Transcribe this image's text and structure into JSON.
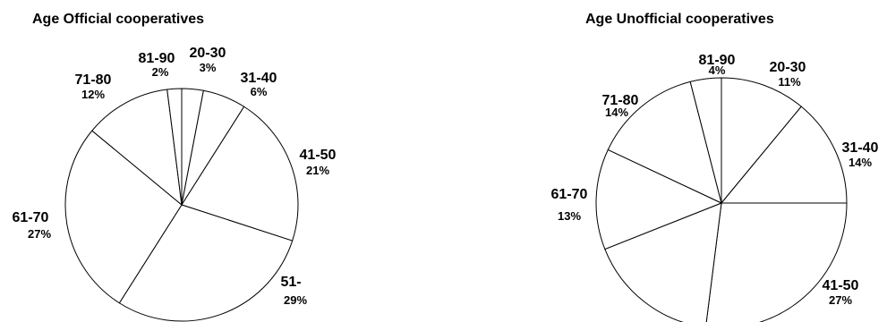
{
  "chart_data": [
    {
      "type": "pie",
      "title": "Age Official cooperatives",
      "slices": [
        {
          "category": "20-30",
          "value": 3,
          "value_label": "3%"
        },
        {
          "category": "31-40",
          "value": 6,
          "value_label": "6%"
        },
        {
          "category": "41-50",
          "value": 21,
          "value_label": "21%"
        },
        {
          "category": "51-",
          "value": 29,
          "value_label": "29%"
        },
        {
          "category": "61-70",
          "value": 27,
          "value_label": "27%"
        },
        {
          "category": "71-80",
          "value": 12,
          "value_label": "12%"
        },
        {
          "category": "81-90",
          "value": 2,
          "value_label": "2%"
        }
      ],
      "colors": {
        "fill": "#ffffff",
        "stroke": "#000000"
      }
    },
    {
      "type": "pie",
      "title": "Age Unofficial cooperatives",
      "slices": [
        {
          "category": "20-30",
          "value": 11,
          "value_label": "11%"
        },
        {
          "category": "31-40",
          "value": 14,
          "value_label": "14%"
        },
        {
          "category": "41-50",
          "value": 27,
          "value_label": "27%"
        },
        {
          "category": "",
          "value": 17,
          "value_label": ""
        },
        {
          "category": "61-70",
          "value": 13,
          "value_label": "13%"
        },
        {
          "category": "71-80",
          "value": 14,
          "value_label": "14%"
        },
        {
          "category": "81-90",
          "value": 4,
          "value_label": "4%"
        }
      ],
      "colors": {
        "fill": "#ffffff",
        "stroke": "#000000"
      }
    }
  ]
}
